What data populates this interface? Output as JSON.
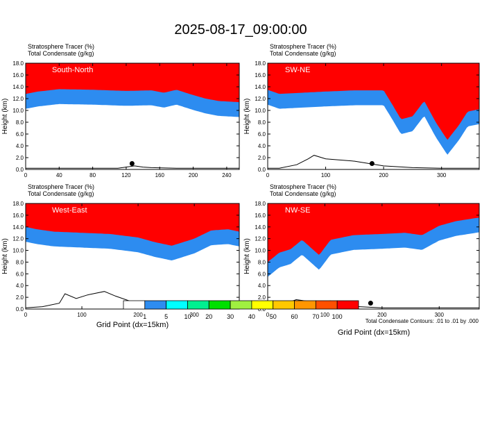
{
  "title": "2025-08-17_09:00:00",
  "footnote": "Total Condensate Contours: .01 to .01 by .000",
  "xlabel": "Grid Point (dx=15km)",
  "ylabel": "Height (km)",
  "legend": {
    "levels": [
      "1",
      "5",
      "10",
      "20",
      "30",
      "40",
      "50",
      "60",
      "70",
      "100"
    ],
    "colors": [
      "#ffffff",
      "#2d8cf0",
      "#00ffff",
      "#00f090",
      "#00e000",
      "#a0f040",
      "#ffff00",
      "#ffc800",
      "#ff9600",
      "#ff5000",
      "#ff0000"
    ]
  },
  "chart_data": [
    {
      "type": "heatmap",
      "panel_title": "South-North",
      "fields": [
        "Stratosphere Tracer   (%)",
        "Total Condensate   (g/kg)"
      ],
      "xlim": [
        0,
        255
      ],
      "xticks": [
        0,
        40,
        80,
        120,
        160,
        200,
        240
      ],
      "ylim": [
        0,
        18
      ],
      "yticks": [
        0,
        2,
        4,
        6,
        8,
        10,
        12,
        14,
        16,
        18
      ],
      "tracer_boundary_x": [
        0,
        15,
        40,
        80,
        120,
        150,
        165,
        180,
        200,
        215,
        230,
        255
      ],
      "tracer_boundary_y": [
        12.8,
        13.2,
        13.6,
        13.5,
        13.3,
        13.4,
        13.0,
        13.5,
        12.6,
        12.0,
        11.6,
        11.4
      ],
      "terrain_x": [
        0,
        110,
        120,
        130,
        140,
        150,
        180,
        200,
        255
      ],
      "terrain_y": [
        0.2,
        0.2,
        0.4,
        0.6,
        0.4,
        0.3,
        0.2,
        0.2,
        0.2
      ],
      "marker": [
        127,
        1.0
      ]
    },
    {
      "type": "heatmap",
      "panel_title": "SW-NE",
      "fields": [
        "Stratosphere Tracer   (%)",
        "Total Condensate   (g/kg)"
      ],
      "xlim": [
        0,
        365
      ],
      "xticks": [
        0,
        100,
        200,
        300
      ],
      "ylim": [
        0,
        18
      ],
      "yticks": [
        0,
        2,
        4,
        6,
        8,
        10,
        12,
        14,
        16,
        18
      ],
      "tracer_boundary_x": [
        0,
        20,
        60,
        100,
        150,
        200,
        215,
        230,
        250,
        270,
        290,
        310,
        330,
        345,
        365
      ],
      "tracer_boundary_y": [
        13.5,
        12.8,
        13.0,
        13.2,
        13.4,
        13.4,
        11.0,
        8.5,
        9.0,
        11.6,
        8.0,
        5.0,
        7.5,
        9.8,
        10.2
      ],
      "terrain_x": [
        0,
        20,
        50,
        70,
        80,
        100,
        150,
        200,
        250,
        300,
        365
      ],
      "terrain_y": [
        0.2,
        0.2,
        0.8,
        1.8,
        2.4,
        1.8,
        1.4,
        0.6,
        0.3,
        0.2,
        0.2
      ],
      "marker": [
        180,
        1.0
      ]
    },
    {
      "type": "heatmap",
      "panel_title": "West-East",
      "fields": [
        "Stratosphere Tracer   (%)",
        "Total Condensate   (g/kg)"
      ],
      "xlim": [
        0,
        380
      ],
      "xticks": [
        0,
        100,
        200,
        300
      ],
      "ylim": [
        0,
        18
      ],
      "yticks": [
        0,
        2,
        4,
        6,
        8,
        10,
        12,
        14,
        16,
        18
      ],
      "tracer_boundary_x": [
        0,
        20,
        50,
        100,
        150,
        200,
        230,
        260,
        300,
        330,
        360,
        380
      ],
      "tracer_boundary_y": [
        14.0,
        13.6,
        13.2,
        13.0,
        12.8,
        12.2,
        11.4,
        10.8,
        12.0,
        13.4,
        13.6,
        13.2
      ],
      "terrain_x": [
        0,
        30,
        60,
        70,
        90,
        110,
        140,
        160,
        190,
        230,
        280,
        330,
        380
      ],
      "terrain_y": [
        0.2,
        0.4,
        1.0,
        2.6,
        1.8,
        2.4,
        3.0,
        2.2,
        1.2,
        0.4,
        0.4,
        0.6,
        0.2
      ],
      "marker": [
        190,
        1.0
      ]
    },
    {
      "type": "heatmap",
      "panel_title": "NW-SE",
      "fields": [
        "Stratosphere Tracer   (%)",
        "Total Condensate   (g/kg)"
      ],
      "xlim": [
        0,
        370
      ],
      "xticks": [
        0,
        100,
        200,
        300
      ],
      "ylim": [
        0,
        18
      ],
      "yticks": [
        0,
        2,
        4,
        6,
        8,
        10,
        12,
        14,
        16,
        18
      ],
      "tracer_boundary_x": [
        0,
        20,
        40,
        60,
        90,
        110,
        150,
        200,
        240,
        270,
        300,
        330,
        370
      ],
      "tracer_boundary_y": [
        8.0,
        9.6,
        10.2,
        11.8,
        9.2,
        11.8,
        12.6,
        12.8,
        13.0,
        12.6,
        14.2,
        15.0,
        15.6
      ],
      "terrain_x": [
        0,
        20,
        50,
        80,
        110,
        130,
        160,
        200,
        250,
        300,
        370
      ],
      "terrain_y": [
        0.2,
        0.6,
        1.6,
        1.2,
        1.4,
        0.6,
        0.4,
        0.2,
        0.2,
        0.2,
        0.2
      ],
      "marker": [
        180,
        1.0
      ]
    }
  ]
}
